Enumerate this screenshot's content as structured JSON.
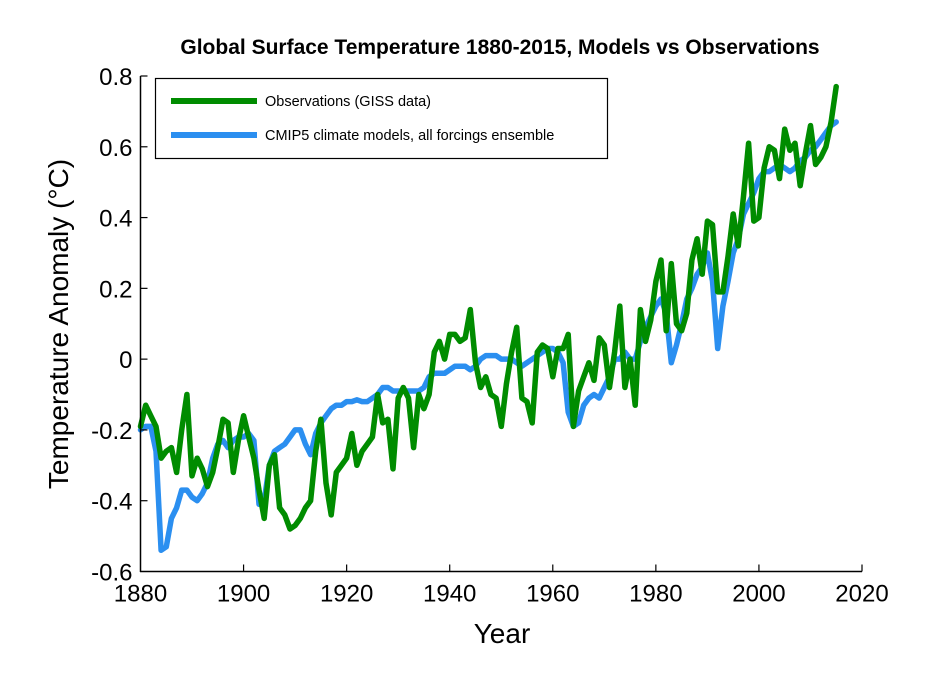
{
  "chart_data": {
    "type": "line",
    "title": "Global Surface Temperature 1880-2015, Models vs Observations",
    "xlabel": "Year",
    "ylabel": "Temperature Anomaly (°C)",
    "xlim": [
      1880,
      2020
    ],
    "ylim": [
      -0.6,
      0.8
    ],
    "xticks": [
      1880,
      1900,
      1920,
      1940,
      1960,
      1980,
      2000,
      2020
    ],
    "xtick_labels": [
      "1880",
      "1900",
      "1920",
      "1940",
      "1960",
      "1980",
      "2000",
      "2020"
    ],
    "yticks": [
      -0.6,
      -0.4,
      -0.2,
      0,
      0.2,
      0.4,
      0.6,
      0.8
    ],
    "ytick_labels": [
      "-0.6",
      "-0.4",
      "-0.2",
      "0",
      "0.2",
      "0.4",
      "0.6",
      "0.8"
    ],
    "grid": false,
    "legend": {
      "position": "top-left",
      "boxed": true
    },
    "x_start": 1880,
    "series": [
      {
        "name": "Observations (GISS data)",
        "color": "#008c00",
        "values": [
          -0.19,
          -0.13,
          -0.16,
          -0.19,
          -0.28,
          -0.26,
          -0.25,
          -0.32,
          -0.2,
          -0.1,
          -0.33,
          -0.28,
          -0.31,
          -0.36,
          -0.32,
          -0.25,
          -0.17,
          -0.18,
          -0.32,
          -0.23,
          -0.16,
          -0.22,
          -0.28,
          -0.37,
          -0.45,
          -0.3,
          -0.27,
          -0.42,
          -0.44,
          -0.48,
          -0.47,
          -0.45,
          -0.42,
          -0.4,
          -0.26,
          -0.17,
          -0.35,
          -0.44,
          -0.32,
          -0.3,
          -0.28,
          -0.21,
          -0.3,
          -0.26,
          -0.24,
          -0.22,
          -0.1,
          -0.18,
          -0.17,
          -0.31,
          -0.11,
          -0.08,
          -0.11,
          -0.25,
          -0.1,
          -0.14,
          -0.1,
          0.02,
          0.05,
          0.0,
          0.07,
          0.07,
          0.05,
          0.06,
          0.14,
          -0.01,
          -0.08,
          -0.05,
          -0.1,
          -0.11,
          -0.19,
          -0.07,
          0.02,
          0.09,
          -0.11,
          -0.12,
          -0.18,
          0.02,
          0.04,
          0.03,
          -0.05,
          0.03,
          0.03,
          0.07,
          -0.19,
          -0.09,
          -0.05,
          -0.01,
          -0.06,
          0.06,
          0.04,
          -0.08,
          0.02,
          0.15,
          -0.08,
          0.0,
          -0.13,
          0.14,
          0.05,
          0.11,
          0.22,
          0.28,
          0.08,
          0.27,
          0.1,
          0.08,
          0.13,
          0.28,
          0.34,
          0.24,
          0.39,
          0.38,
          0.19,
          0.19,
          0.29,
          0.41,
          0.32,
          0.46,
          0.61,
          0.39,
          0.4,
          0.54,
          0.6,
          0.59,
          0.51,
          0.65,
          0.59,
          0.61,
          0.49,
          0.58,
          0.66,
          0.55,
          0.57,
          0.6,
          0.67,
          0.77
        ]
      },
      {
        "name": "CMIP5 climate models, all forcings ensemble",
        "color": "#2b8ff0",
        "values": [
          -0.2,
          -0.19,
          -0.19,
          -0.26,
          -0.54,
          -0.53,
          -0.45,
          -0.42,
          -0.37,
          -0.37,
          -0.39,
          -0.4,
          -0.38,
          -0.35,
          -0.28,
          -0.24,
          -0.23,
          -0.25,
          -0.23,
          -0.22,
          -0.22,
          -0.21,
          -0.23,
          -0.41,
          -0.4,
          -0.3,
          -0.26,
          -0.25,
          -0.24,
          -0.22,
          -0.2,
          -0.2,
          -0.24,
          -0.27,
          -0.21,
          -0.18,
          -0.16,
          -0.14,
          -0.13,
          -0.13,
          -0.12,
          -0.12,
          -0.115,
          -0.12,
          -0.12,
          -0.11,
          -0.1,
          -0.08,
          -0.08,
          -0.09,
          -0.09,
          -0.09,
          -0.09,
          -0.09,
          -0.09,
          -0.08,
          -0.05,
          -0.04,
          -0.04,
          -0.04,
          -0.03,
          -0.02,
          -0.02,
          -0.02,
          -0.03,
          -0.02,
          0.0,
          0.01,
          0.01,
          0.01,
          0.0,
          0.0,
          0.0,
          -0.01,
          -0.02,
          -0.01,
          0.0,
          0.01,
          0.02,
          0.03,
          0.03,
          0.02,
          -0.01,
          -0.15,
          -0.19,
          -0.18,
          -0.13,
          -0.11,
          -0.1,
          -0.11,
          -0.08,
          -0.05,
          0.0,
          0.0,
          0.02,
          0.0,
          0.0,
          0.05,
          0.09,
          0.12,
          0.15,
          0.17,
          0.13,
          -0.01,
          0.04,
          0.1,
          0.17,
          0.2,
          0.24,
          0.26,
          0.3,
          0.22,
          0.03,
          0.15,
          0.22,
          0.3,
          0.34,
          0.41,
          0.44,
          0.47,
          0.51,
          0.53,
          0.53,
          0.54,
          0.55,
          0.54,
          0.53,
          0.54,
          0.56,
          0.57,
          0.59,
          0.6,
          0.62,
          0.64,
          0.66,
          0.67
        ]
      }
    ]
  }
}
